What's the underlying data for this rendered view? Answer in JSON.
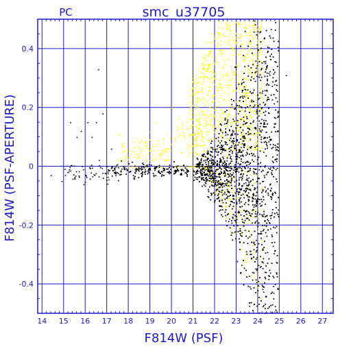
{
  "chart_data": {
    "type": "scatter",
    "title": "smc_u37705",
    "subtitle": "PC",
    "xlabel": "F814W (PSF)",
    "ylabel": "F814W (PSF-APERTURE)",
    "xlim": [
      13.8,
      27.5
    ],
    "ylim": [
      -0.5,
      0.5
    ],
    "x_ticks": [
      14,
      15,
      16,
      17,
      18,
      19,
      20,
      21,
      22,
      23,
      24,
      25,
      26,
      27
    ],
    "y_ticks": [
      -0.4,
      -0.2,
      0,
      0.2,
      0.4
    ],
    "y_tick_labels": [
      "-0.4",
      "-0.2",
      "0",
      "0.2",
      "0.4"
    ],
    "grid": true,
    "series": [
      {
        "color": "#000000",
        "description_points": [
          [
            14.4,
            -0.03
          ],
          [
            14.9,
            -0.05
          ],
          [
            15.3,
            0.15
          ],
          [
            15.6,
            0.1
          ],
          [
            15.8,
            0.12
          ],
          [
            15.9,
            -0.01
          ],
          [
            16.1,
            0.15
          ],
          [
            16.3,
            0.1
          ],
          [
            16.5,
            0.15
          ],
          [
            16.6,
            0.33
          ],
          [
            16.8,
            0.18
          ],
          [
            17.0,
            0.0
          ],
          [
            17.2,
            0.06
          ],
          [
            17.4,
            -0.03
          ],
          [
            24.2,
            -0.05
          ],
          [
            25.3,
            0.31
          ]
        ]
      },
      {
        "color": "#ffff00",
        "description_points": [
          [
            17.5,
            0.02
          ],
          [
            18.5,
            0.08
          ],
          [
            19.2,
            0.15
          ],
          [
            20.0,
            0.2
          ],
          [
            21.0,
            0.3
          ],
          [
            22.0,
            0.42
          ],
          [
            23.0,
            0.45
          ]
        ]
      }
    ]
  }
}
